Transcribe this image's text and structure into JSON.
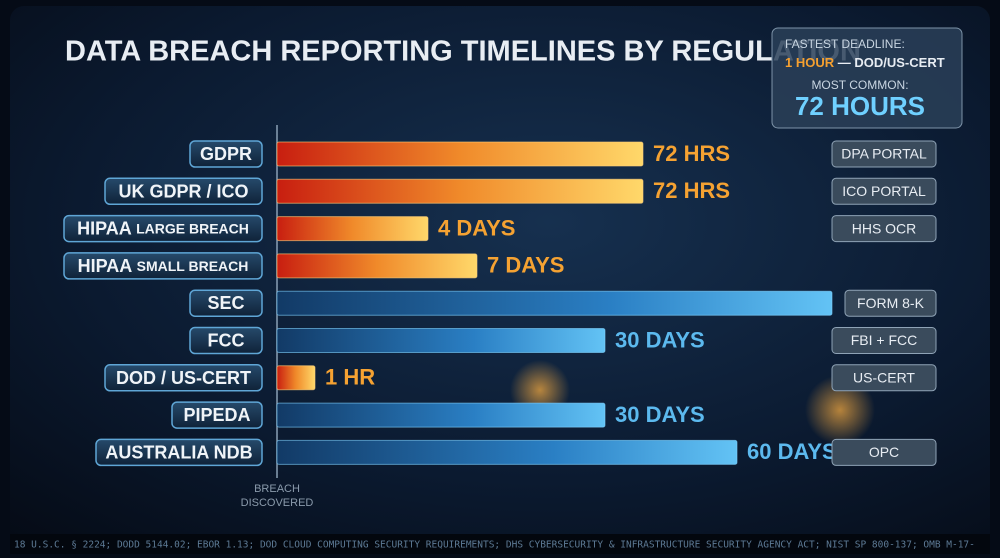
{
  "header": {
    "title": "DATA BREACH REPORTING TIMELINES BY REGULATION"
  },
  "callout": {
    "fastest_label": "FASTEST DEADLINE:",
    "fastest_value": "1 HOUR",
    "fastest_separator": "—",
    "fastest_source": "DOD/US-CERT",
    "common_label": "MOST COMMON:",
    "common_value": "72 HOURS"
  },
  "rows": [
    {
      "label": "GDPR",
      "value_label": "72 HRS",
      "destination": "DPA PORTAL"
    },
    {
      "label": "UK GDPR / ICO",
      "value_label": "72 HRS",
      "destination": "ICO PORTAL"
    },
    {
      "label": "HIPAA",
      "qualifier": "LARGE BREACH",
      "value_label": "4 DAYS",
      "destination": "HHS OCR"
    },
    {
      "label": "HIPAA",
      "qualifier": "SMALL BREACH",
      "value_label": "7 DAYS"
    },
    {
      "label": "SEC",
      "destination": "FORM 8-K"
    },
    {
      "label": "FCC",
      "value_label": "30 DAYS",
      "destination": "FBI + FCC"
    },
    {
      "label": "DOD / US-CERT",
      "value_label": "1 HR",
      "destination": "US-CERT"
    },
    {
      "label": "PIPEDA",
      "value_label": "30 DAYS"
    },
    {
      "label": "AUSTRALIA NDB",
      "value_label": "60 DAYS",
      "destination": "OPC"
    }
  ],
  "axis_note": [
    "BREACH",
    "DISCOVERED"
  ],
  "footer": "18 U.S.C. § 2224; DODD 5144.02; EBOR 1.13; DOD CLOUD COMPUTING SECURITY REQUIREMENTS; DHS CYBERSECURITY & INFRASTRUCTURE SECURITY AGENCY ACT; NIST SP 800-137; OMB M-17-"
}
